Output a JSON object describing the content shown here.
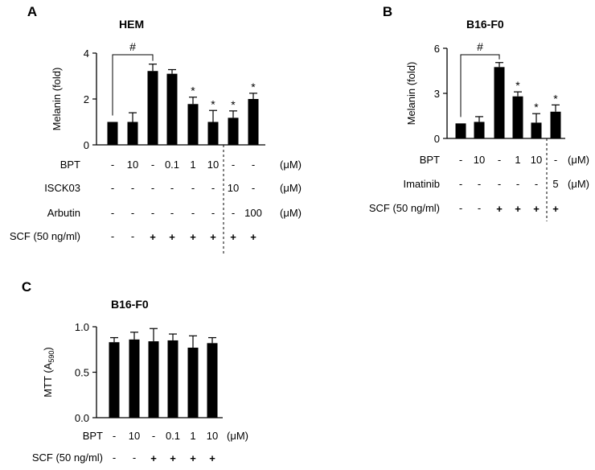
{
  "colors": {
    "bar": "#000000",
    "axis": "#000000",
    "background": "#ffffff"
  },
  "chart_data": [
    {
      "panel": "A",
      "title": "HEM",
      "type": "bar",
      "ylabel": "Melanin (fold)",
      "ylim": [
        0,
        4
      ],
      "yticks": [
        "0",
        "2",
        "4"
      ],
      "values": [
        1.0,
        1.0,
        3.22,
        3.1,
        1.78,
        1.0,
        1.18,
        2.0
      ],
      "errors": [
        0.0,
        0.4,
        0.3,
        0.18,
        0.3,
        0.5,
        0.3,
        0.25
      ],
      "sig": [
        "",
        "",
        "",
        "",
        "*",
        "*",
        "*",
        "*"
      ],
      "bracket_label": "#",
      "grid": false,
      "table": [
        {
          "label": "BPT",
          "cells": [
            "-",
            "10",
            "-",
            "0.1",
            "1",
            "10",
            "-",
            "-"
          ],
          "unit": "(μM)"
        },
        {
          "label": "ISCK03",
          "cells": [
            "-",
            "-",
            "-",
            "-",
            "-",
            "-",
            "10",
            "-"
          ],
          "unit": "(μM)"
        },
        {
          "label": "Arbutin",
          "cells": [
            "-",
            "-",
            "-",
            "-",
            "-",
            "-",
            "-",
            "100"
          ],
          "unit": "(μM)"
        },
        {
          "label": "SCF (50 ng/ml)",
          "cells": [
            "-",
            "-",
            "+",
            "+",
            "+",
            "+",
            "+",
            "+"
          ],
          "unit": ""
        }
      ]
    },
    {
      "panel": "B",
      "title": "B16-F0",
      "type": "bar",
      "ylabel": "Melanin (fold)",
      "ylim": [
        0,
        6
      ],
      "yticks": [
        "0",
        "3",
        "6"
      ],
      "values": [
        1.0,
        1.1,
        4.75,
        2.8,
        1.05,
        1.78
      ],
      "errors": [
        0.0,
        0.35,
        0.3,
        0.3,
        0.6,
        0.45
      ],
      "sig": [
        "",
        "",
        "",
        "*",
        "*",
        "*"
      ],
      "bracket_label": "#",
      "grid": false,
      "table": [
        {
          "label": "BPT",
          "cells": [
            "-",
            "10",
            "-",
            "1",
            "10",
            "-"
          ],
          "unit": "(μM)"
        },
        {
          "label": "Imatinib",
          "cells": [
            "-",
            "-",
            "-",
            "-",
            "-",
            "5"
          ],
          "unit": "(μM)"
        },
        {
          "label": "SCF (50 ng/ml)",
          "cells": [
            "-",
            "-",
            "+",
            "+",
            "+",
            "+"
          ],
          "unit": ""
        }
      ]
    },
    {
      "panel": "C",
      "title": "B16-F0",
      "type": "bar",
      "ylabel": "MTT (A",
      "ylabel_sub": "590",
      "ylabel_end": ")",
      "ylim": [
        0,
        1.0
      ],
      "yticks": [
        "0.0",
        "0.5",
        "1.0"
      ],
      "values": [
        0.83,
        0.86,
        0.84,
        0.85,
        0.77,
        0.82
      ],
      "errors": [
        0.05,
        0.08,
        0.14,
        0.07,
        0.13,
        0.06
      ],
      "sig": [
        "",
        "",
        "",
        "",
        "",
        ""
      ],
      "grid": false,
      "table": [
        {
          "label": "BPT",
          "cells": [
            "-",
            "10",
            "-",
            "0.1",
            "1",
            "10"
          ],
          "unit": "(μM)"
        },
        {
          "label": "SCF (50 ng/ml)",
          "cells": [
            "-",
            "-",
            "+",
            "+",
            "+",
            "+"
          ],
          "unit": ""
        }
      ]
    }
  ]
}
